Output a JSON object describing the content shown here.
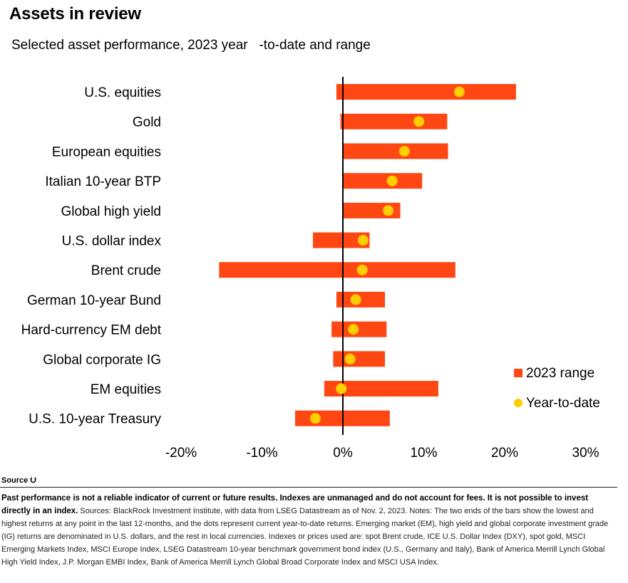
{
  "header": {
    "title": "Assets in review",
    "subtitle": "Selected asset performance, 2023 year   -to-date and range"
  },
  "chart_data": {
    "type": "bar",
    "orientation": "horizontal-range",
    "categories": [
      "U.S. equities",
      "Gold",
      "European equities",
      "Italian 10-year BTP",
      "Global high yield",
      "U.S. dollar index",
      "Brent crude",
      "German 10-year Bund",
      "Hard-currency EM debt",
      "Global corporate IG",
      "EM equities",
      "U.S. 10-year Treasury"
    ],
    "series": [
      {
        "name": "2023 range",
        "low": [
          -0.8,
          -0.3,
          0.0,
          0.0,
          0.0,
          -3.7,
          -15.3,
          -0.8,
          -1.4,
          -1.2,
          -2.3,
          -5.9
        ],
        "high": [
          21.4,
          12.9,
          13.0,
          9.8,
          7.1,
          3.3,
          13.9,
          5.2,
          5.4,
          5.2,
          11.8,
          5.8
        ]
      },
      {
        "name": "Year-to-date",
        "values": [
          14.4,
          9.4,
          7.6,
          6.1,
          5.6,
          2.5,
          2.4,
          1.6,
          1.3,
          0.9,
          -0.2,
          -3.4
        ]
      }
    ],
    "xlim": [
      -20,
      30
    ],
    "xticks": [
      -20,
      -10,
      0,
      10,
      20,
      30
    ],
    "xtick_labels": [
      "-20%",
      "-10%",
      "0%",
      "10%",
      "20%",
      "30%"
    ],
    "legend_position": "bottom-right",
    "colors": {
      "range": "#ff4713",
      "ytd": "#ffce00",
      "zero_line": "#000000"
    }
  },
  "footer": {
    "source_toggle": "Source ⮋",
    "disclaimer_bold": "Past performance is not a reliable indicator of current or future results. Indexes are unmanaged and do not account for fees. It is not possible to invest directly in an index.",
    "notes": " Sources: BlackRock Investment Institute, with data from LSEG Datastream as of Nov. 2, 2023. Notes: The two ends of the bars show the lowest and highest returns at any point in the last 12-months, and the dots represent current year-to-date returns. Emerging market (EM), high yield and global corporate investment grade (IG) returns are denominated in U.S. dollars, and the rest in local currencies. Indexes or prices used are: spot Brent crude, ICE U.S. Dollar Index (DXY), spot gold, MSCI Emerging Markets Index, MSCI Europe Index, LSEG Datastream 10-year benchmark government bond index (U.S., Germany and Italy), Bank of America Merrill Lynch Global High Yield Index, J.P. Morgan EMBI Index, Bank of America Merrill Lynch Global Broad Corporate Index and MSCI USA Index."
  }
}
